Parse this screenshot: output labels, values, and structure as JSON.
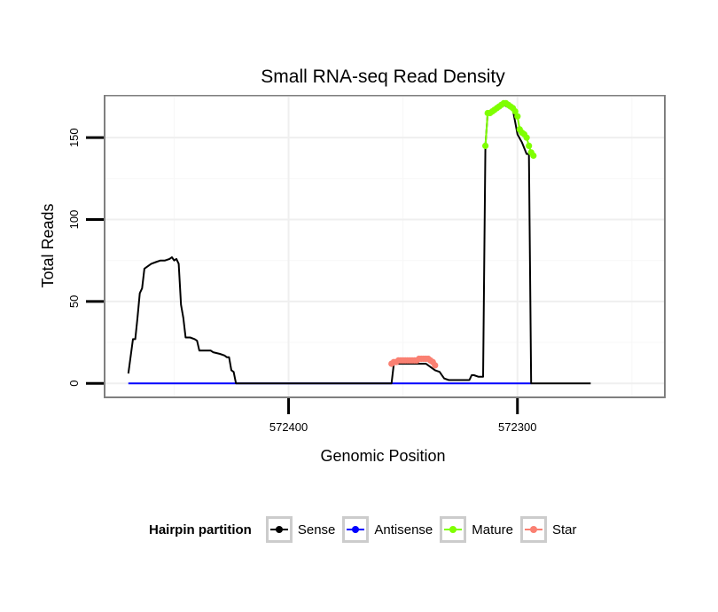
{
  "chart_data": {
    "type": "line",
    "title": "Small RNA-seq Read Density",
    "xlabel": "Genomic Position",
    "ylabel": "Total Reads",
    "xlim": [
      572480,
      572236
    ],
    "ylim": [
      -8,
      175
    ],
    "x_ticks": [
      572400,
      572300
    ],
    "y_ticks": [
      0,
      50,
      100,
      150
    ],
    "x_reversed": true,
    "grid": true,
    "legend_title": "Hairpin partition",
    "legend_position": "bottom",
    "series": [
      {
        "name": "Sense",
        "color": "#000000",
        "markers": false,
        "points": [
          [
            572470,
            6
          ],
          [
            572468,
            27
          ],
          [
            572467,
            27
          ],
          [
            572466,
            40
          ],
          [
            572465,
            55
          ],
          [
            572464,
            58
          ],
          [
            572463,
            70
          ],
          [
            572462,
            71
          ],
          [
            572460,
            73
          ],
          [
            572458,
            74
          ],
          [
            572456,
            75
          ],
          [
            572454,
            75
          ],
          [
            572452,
            76
          ],
          [
            572451,
            77
          ],
          [
            572450,
            75
          ],
          [
            572449,
            76
          ],
          [
            572448,
            73
          ],
          [
            572447,
            48
          ],
          [
            572446,
            40
          ],
          [
            572445,
            28
          ],
          [
            572443,
            28
          ],
          [
            572441,
            27
          ],
          [
            572440,
            26
          ],
          [
            572439,
            20
          ],
          [
            572437,
            20
          ],
          [
            572434,
            20
          ],
          [
            572433,
            19
          ],
          [
            572430,
            18
          ],
          [
            572428,
            17
          ],
          [
            572427,
            16
          ],
          [
            572426,
            16
          ],
          [
            572425,
            8
          ],
          [
            572424,
            7
          ],
          [
            572423,
            0
          ],
          [
            572355,
            0
          ],
          [
            572354,
            12
          ],
          [
            572340,
            12
          ],
          [
            572336,
            8
          ],
          [
            572334,
            7
          ],
          [
            572333,
            5
          ],
          [
            572332,
            3
          ],
          [
            572330,
            2
          ],
          [
            572324,
            2
          ],
          [
            572321,
            2
          ],
          [
            572320,
            5
          ],
          [
            572319,
            5
          ],
          [
            572317,
            4
          ],
          [
            572315,
            4
          ],
          [
            572314,
            145
          ],
          [
            572313,
            165
          ],
          [
            572308,
            170
          ],
          [
            572306,
            170
          ],
          [
            572302,
            167
          ],
          [
            572300,
            152
          ],
          [
            572298,
            147
          ],
          [
            572296,
            140
          ],
          [
            572295,
            140
          ],
          [
            572294,
            0
          ],
          [
            572268,
            0
          ]
        ]
      },
      {
        "name": "Antisense",
        "color": "#0000ff",
        "markers": false,
        "points": [
          [
            572470,
            0
          ],
          [
            572294,
            0
          ]
        ]
      },
      {
        "name": "Mature",
        "color": "#7fff00",
        "markers": true,
        "points": [
          [
            572314,
            145
          ],
          [
            572313,
            165
          ],
          [
            572312,
            165
          ],
          [
            572311,
            166
          ],
          [
            572310,
            167
          ],
          [
            572309,
            168
          ],
          [
            572308,
            169
          ],
          [
            572307,
            170
          ],
          [
            572306,
            171
          ],
          [
            572305,
            171
          ],
          [
            572304,
            170
          ],
          [
            572303,
            169
          ],
          [
            572302,
            168
          ],
          [
            572301,
            166
          ],
          [
            572300,
            163
          ],
          [
            572299,
            155
          ],
          [
            572298,
            153
          ],
          [
            572297,
            152
          ],
          [
            572296,
            150
          ],
          [
            572295,
            145
          ],
          [
            572294,
            141
          ],
          [
            572293,
            139
          ]
        ]
      },
      {
        "name": "Star",
        "color": "#fa8072",
        "markers": true,
        "points": [
          [
            572355,
            12
          ],
          [
            572354,
            13
          ],
          [
            572353,
            13
          ],
          [
            572352,
            14
          ],
          [
            572351,
            14
          ],
          [
            572350,
            14
          ],
          [
            572349,
            14
          ],
          [
            572348,
            14
          ],
          [
            572347,
            14
          ],
          [
            572346,
            14
          ],
          [
            572345,
            14
          ],
          [
            572344,
            14
          ],
          [
            572343,
            15
          ],
          [
            572342,
            15
          ],
          [
            572341,
            15
          ],
          [
            572340,
            15
          ],
          [
            572339,
            15
          ],
          [
            572338,
            14
          ],
          [
            572337,
            13
          ],
          [
            572336,
            11
          ]
        ]
      }
    ]
  }
}
